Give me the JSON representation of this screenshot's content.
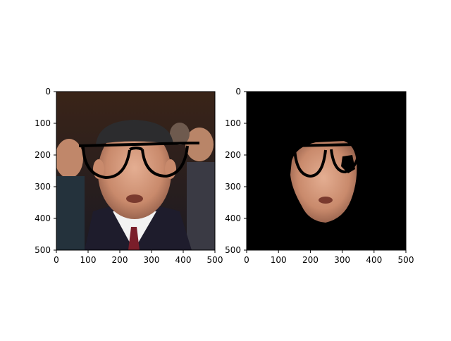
{
  "chart_data": [
    {
      "type": "image",
      "content": "photo of a man wearing a flat cap, with black thick-framed glasses overlaid",
      "xlim": [
        0,
        500
      ],
      "ylim": [
        500,
        0
      ],
      "xticks": [
        0,
        100,
        200,
        300,
        400,
        500
      ],
      "yticks": [
        0,
        100,
        200,
        300,
        400,
        500
      ]
    },
    {
      "type": "image",
      "content": "segmented face region only on black background, with glasses overlay",
      "xlim": [
        0,
        500
      ],
      "ylim": [
        500,
        0
      ],
      "xticks": [
        0,
        100,
        200,
        300,
        400,
        500
      ],
      "yticks": [
        0,
        100,
        200,
        300,
        400,
        500
      ]
    }
  ],
  "colors": {
    "axis": "#000000",
    "glasses": "#000000",
    "skin": "#d9a082",
    "background_dark": "#2a1c18",
    "mask_background": "#000000"
  }
}
